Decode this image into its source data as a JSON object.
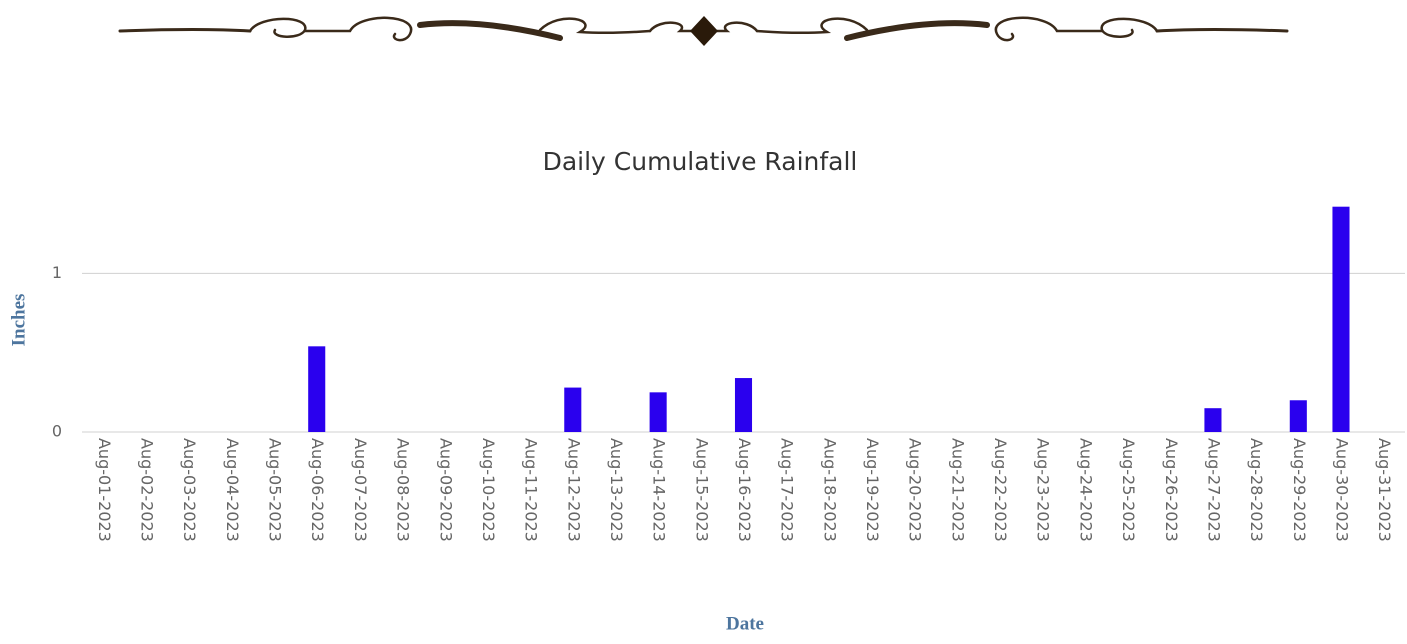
{
  "chart_data": {
    "type": "bar",
    "title": "Daily Cumulative Rainfall",
    "x_label": "Date",
    "y_label": "Inches",
    "categories": [
      "Aug-01-2023",
      "Aug-02-2023",
      "Aug-03-2023",
      "Aug-04-2023",
      "Aug-05-2023",
      "Aug-06-2023",
      "Aug-07-2023",
      "Aug-08-2023",
      "Aug-09-2023",
      "Aug-10-2023",
      "Aug-11-2023",
      "Aug-12-2023",
      "Aug-13-2023",
      "Aug-14-2023",
      "Aug-15-2023",
      "Aug-16-2023",
      "Aug-17-2023",
      "Aug-18-2023",
      "Aug-19-2023",
      "Aug-20-2023",
      "Aug-21-2023",
      "Aug-22-2023",
      "Aug-23-2023",
      "Aug-24-2023",
      "Aug-25-2023",
      "Aug-26-2023",
      "Aug-27-2023",
      "Aug-28-2023",
      "Aug-29-2023",
      "Aug-30-2023",
      "Aug-31-2023"
    ],
    "values": [
      0,
      0,
      0,
      0,
      0,
      0.54,
      0,
      0,
      0,
      0,
      0,
      0.28,
      0,
      0.25,
      0,
      0.34,
      0,
      0,
      0,
      0,
      0,
      0,
      0,
      0,
      0,
      0,
      0.15,
      0,
      0.2,
      1.42,
      0
    ],
    "color": "#2a00ee",
    "ylim": [
      0,
      1.5
    ],
    "yticks": [
      0,
      1
    ],
    "grid": true
  }
}
